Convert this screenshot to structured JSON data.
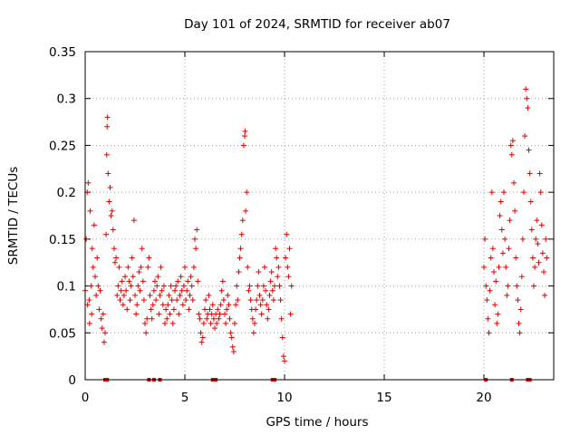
{
  "chart_data": {
    "type": "scatter",
    "title": "Day 101 of 2024, SRMTID for receiver ab07",
    "xlabel": "GPS time / hours",
    "ylabel": "SRMTID / TECUs",
    "xlim": [
      0,
      23.5
    ],
    "ylim": [
      0,
      0.35
    ],
    "xticks": [
      0,
      5,
      10,
      15,
      20
    ],
    "xtick_labels": [
      "0",
      "5",
      "10",
      "15",
      "20"
    ],
    "yticks": [
      0,
      0.05,
      0.1,
      0.15,
      0.2,
      0.25,
      0.3,
      0.35
    ],
    "ytick_labels": [
      "0",
      "0.05",
      "0.1",
      "0.15",
      "0.2",
      "0.25",
      "0.3",
      "0.35"
    ],
    "grid": true,
    "marker": "plus",
    "marker_color": "#e00000",
    "series": [
      {
        "name": "SRMTID",
        "points": [
          [
            0.0,
            0.095
          ],
          [
            0.05,
            0.15
          ],
          [
            0.1,
            0.2
          ],
          [
            0.12,
            0.08
          ],
          [
            0.15,
            0.21
          ],
          [
            0.2,
            0.085
          ],
          [
            0.22,
            0.06
          ],
          [
            0.25,
            0.18
          ],
          [
            0.3,
            0.1
          ],
          [
            0.33,
            0.07
          ],
          [
            0.35,
            0.14
          ],
          [
            0.4,
            0.12
          ],
          [
            0.45,
            0.165
          ],
          [
            0.5,
            0.11
          ],
          [
            0.55,
            0.09
          ],
          [
            0.6,
            0.13
          ],
          [
            0.65,
            0.1
          ],
          [
            0.7,
            0.075
          ],
          [
            0.75,
            0.095
          ],
          [
            0.8,
            0.065
          ],
          [
            0.85,
            0.055
          ],
          [
            0.9,
            0.07
          ],
          [
            0.95,
            0.04
          ],
          [
            1.0,
            0.05
          ],
          [
            1.05,
            0.155
          ],
          [
            1.08,
            0.24
          ],
          [
            1.1,
            0.27
          ],
          [
            1.12,
            0.28
          ],
          [
            1.15,
            0.22
          ],
          [
            1.2,
            0.19
          ],
          [
            1.25,
            0.205
          ],
          [
            1.3,
            0.175
          ],
          [
            1.35,
            0.18
          ],
          [
            1.4,
            0.16
          ],
          [
            1.45,
            0.14
          ],
          [
            1.5,
            0.125
          ],
          [
            1.55,
            0.13
          ],
          [
            1.6,
            0.09
          ],
          [
            1.65,
            0.1
          ],
          [
            1.7,
            0.12
          ],
          [
            1.75,
            0.085
          ],
          [
            1.8,
            0.095
          ],
          [
            1.85,
            0.105
          ],
          [
            1.9,
            0.08
          ],
          [
            1.95,
            0.09
          ],
          [
            2.0,
            0.11
          ],
          [
            2.05,
            0.095
          ],
          [
            2.1,
            0.075
          ],
          [
            2.15,
            0.12
          ],
          [
            2.2,
            0.105
          ],
          [
            2.25,
            0.085
          ],
          [
            2.3,
            0.1
          ],
          [
            2.35,
            0.13
          ],
          [
            2.4,
            0.11
          ],
          [
            2.45,
            0.17
          ],
          [
            2.5,
            0.09
          ],
          [
            2.55,
            0.07
          ],
          [
            2.6,
            0.08
          ],
          [
            2.65,
            0.1
          ],
          [
            2.7,
            0.115
          ],
          [
            2.75,
            0.095
          ],
          [
            2.8,
            0.12
          ],
          [
            2.85,
            0.14
          ],
          [
            2.9,
            0.105
          ],
          [
            2.95,
            0.085
          ],
          [
            3.0,
            0.06
          ],
          [
            3.05,
            0.05
          ],
          [
            3.1,
            0.065
          ],
          [
            3.15,
            0.12
          ],
          [
            3.2,
            0.13
          ],
          [
            3.25,
            0.09
          ],
          [
            3.3,
            0.075
          ],
          [
            3.35,
            0.065
          ],
          [
            3.4,
            0.08
          ],
          [
            3.45,
            0.095
          ],
          [
            3.5,
            0.105
          ],
          [
            3.55,
            0.085
          ],
          [
            3.6,
            0.1
          ],
          [
            3.65,
            0.11
          ],
          [
            3.7,
            0.07
          ],
          [
            3.75,
            0.09
          ],
          [
            3.8,
            0.12
          ],
          [
            3.85,
            0.095
          ],
          [
            3.9,
            0.08
          ],
          [
            3.95,
            0.1
          ],
          [
            4.0,
            0.06
          ],
          [
            4.05,
            0.075
          ],
          [
            4.1,
            0.065
          ],
          [
            4.15,
            0.08
          ],
          [
            4.2,
            0.09
          ],
          [
            4.25,
            0.07
          ],
          [
            4.3,
            0.1
          ],
          [
            4.35,
            0.085
          ],
          [
            4.4,
            0.06
          ],
          [
            4.45,
            0.075
          ],
          [
            4.5,
            0.095
          ],
          [
            4.55,
            0.1
          ],
          [
            4.6,
            0.085
          ],
          [
            4.65,
            0.105
          ],
          [
            4.7,
            0.07
          ],
          [
            4.75,
            0.09
          ],
          [
            4.8,
            0.11
          ],
          [
            4.85,
            0.095
          ],
          [
            4.9,
            0.08
          ],
          [
            4.95,
            0.1
          ],
          [
            5.0,
            0.12
          ],
          [
            5.05,
            0.085
          ],
          [
            5.1,
            0.095
          ],
          [
            5.15,
            0.105
          ],
          [
            5.2,
            0.075
          ],
          [
            5.25,
            0.09
          ],
          [
            5.3,
            0.11
          ],
          [
            5.35,
            0.1
          ],
          [
            5.4,
            0.085
          ],
          [
            5.45,
            0.12
          ],
          [
            5.5,
            0.15
          ],
          [
            5.55,
            0.14
          ],
          [
            5.6,
            0.16
          ],
          [
            5.65,
            0.105
          ],
          [
            5.7,
            0.07
          ],
          [
            5.75,
            0.065
          ],
          [
            5.8,
            0.05
          ],
          [
            5.85,
            0.04
          ],
          [
            5.9,
            0.045
          ],
          [
            5.95,
            0.06
          ],
          [
            6.0,
            0.075
          ],
          [
            6.05,
            0.085
          ],
          [
            6.1,
            0.065
          ],
          [
            6.15,
            0.07
          ],
          [
            6.2,
            0.09
          ],
          [
            6.25,
            0.075
          ],
          [
            6.3,
            0.06
          ],
          [
            6.35,
            0.07
          ],
          [
            6.4,
            0.08
          ],
          [
            6.45,
            0.065
          ],
          [
            6.5,
            0.055
          ],
          [
            6.55,
            0.07
          ],
          [
            6.6,
            0.06
          ],
          [
            6.65,
            0.075
          ],
          [
            6.7,
            0.065
          ],
          [
            6.75,
            0.07
          ],
          [
            6.8,
            0.08
          ],
          [
            6.85,
            0.095
          ],
          [
            6.9,
            0.105
          ],
          [
            6.95,
            0.085
          ],
          [
            7.0,
            0.07
          ],
          [
            7.05,
            0.06
          ],
          [
            7.1,
            0.075
          ],
          [
            7.15,
            0.09
          ],
          [
            7.2,
            0.08
          ],
          [
            7.25,
            0.065
          ],
          [
            7.3,
            0.05
          ],
          [
            7.35,
            0.045
          ],
          [
            7.4,
            0.035
          ],
          [
            7.45,
            0.03
          ],
          [
            7.5,
            0.06
          ],
          [
            7.55,
            0.08
          ],
          [
            7.6,
            0.1
          ],
          [
            7.65,
            0.085
          ],
          [
            7.7,
            0.115
          ],
          [
            7.75,
            0.13
          ],
          [
            7.8,
            0.14
          ],
          [
            7.85,
            0.155
          ],
          [
            7.9,
            0.17
          ],
          [
            7.95,
            0.25
          ],
          [
            8.0,
            0.26
          ],
          [
            8.02,
            0.265
          ],
          [
            8.05,
            0.18
          ],
          [
            8.1,
            0.2
          ],
          [
            8.15,
            0.12
          ],
          [
            8.2,
            0.095
          ],
          [
            8.25,
            0.1
          ],
          [
            8.3,
            0.085
          ],
          [
            8.35,
            0.075
          ],
          [
            8.4,
            0.065
          ],
          [
            8.45,
            0.05
          ],
          [
            8.5,
            0.06
          ],
          [
            8.55,
            0.075
          ],
          [
            8.6,
            0.085
          ],
          [
            8.65,
            0.1
          ],
          [
            8.7,
            0.115
          ],
          [
            8.75,
            0.09
          ],
          [
            8.8,
            0.08
          ],
          [
            8.85,
            0.07
          ],
          [
            8.9,
            0.085
          ],
          [
            8.95,
            0.1
          ],
          [
            9.0,
            0.12
          ],
          [
            9.05,
            0.095
          ],
          [
            9.1,
            0.08
          ],
          [
            9.15,
            0.065
          ],
          [
            9.2,
            0.075
          ],
          [
            9.25,
            0.09
          ],
          [
            9.3,
            0.105
          ],
          [
            9.35,
            0.115
          ],
          [
            9.4,
            0.095
          ],
          [
            9.45,
            0.085
          ],
          [
            9.5,
            0.1
          ],
          [
            9.55,
            0.14
          ],
          [
            9.6,
            0.13
          ],
          [
            9.65,
            0.11
          ],
          [
            9.7,
            0.12
          ],
          [
            9.75,
            0.1
          ],
          [
            9.8,
            0.085
          ],
          [
            9.85,
            0.065
          ],
          [
            9.9,
            0.045
          ],
          [
            9.95,
            0.025
          ],
          [
            10.0,
            0.02
          ],
          [
            10.05,
            0.13
          ],
          [
            10.1,
            0.155
          ],
          [
            10.15,
            0.12
          ],
          [
            10.2,
            0.11
          ],
          [
            10.25,
            0.14
          ],
          [
            10.3,
            0.07
          ],
          [
            10.35,
            0.1
          ],
          [
            20.0,
            0.12
          ],
          [
            20.05,
            0.15
          ],
          [
            20.1,
            0.1
          ],
          [
            20.15,
            0.085
          ],
          [
            20.2,
            0.065
          ],
          [
            20.25,
            0.05
          ],
          [
            20.3,
            0.095
          ],
          [
            20.35,
            0.13
          ],
          [
            20.4,
            0.2
          ],
          [
            20.45,
            0.14
          ],
          [
            20.5,
            0.115
          ],
          [
            20.55,
            0.08
          ],
          [
            20.6,
            0.105
          ],
          [
            20.65,
            0.06
          ],
          [
            20.7,
            0.07
          ],
          [
            20.75,
            0.12
          ],
          [
            20.8,
            0.175
          ],
          [
            20.85,
            0.19
          ],
          [
            20.9,
            0.16
          ],
          [
            20.95,
            0.135
          ],
          [
            21.0,
            0.2
          ],
          [
            21.05,
            0.15
          ],
          [
            21.1,
            0.12
          ],
          [
            21.15,
            0.09
          ],
          [
            21.2,
            0.1
          ],
          [
            21.25,
            0.14
          ],
          [
            21.3,
            0.17
          ],
          [
            21.35,
            0.25
          ],
          [
            21.4,
            0.24
          ],
          [
            21.45,
            0.255
          ],
          [
            21.5,
            0.21
          ],
          [
            21.55,
            0.18
          ],
          [
            21.6,
            0.13
          ],
          [
            21.65,
            0.1
          ],
          [
            21.7,
            0.085
          ],
          [
            21.75,
            0.06
          ],
          [
            21.8,
            0.05
          ],
          [
            21.85,
            0.075
          ],
          [
            21.9,
            0.11
          ],
          [
            21.95,
            0.15
          ],
          [
            22.0,
            0.2
          ],
          [
            22.05,
            0.26
          ],
          [
            22.1,
            0.31
          ],
          [
            22.15,
            0.3
          ],
          [
            22.2,
            0.29
          ],
          [
            22.25,
            0.245
          ],
          [
            22.3,
            0.22
          ],
          [
            22.35,
            0.19
          ],
          [
            22.4,
            0.16
          ],
          [
            22.45,
            0.13
          ],
          [
            22.5,
            0.1
          ],
          [
            22.55,
            0.12
          ],
          [
            22.6,
            0.15
          ],
          [
            22.65,
            0.17
          ],
          [
            22.7,
            0.145
          ],
          [
            22.75,
            0.125
          ],
          [
            22.8,
            0.22
          ],
          [
            22.85,
            0.2
          ],
          [
            22.9,
            0.165
          ],
          [
            22.95,
            0.135
          ],
          [
            23.0,
            0.115
          ],
          [
            23.05,
            0.09
          ],
          [
            23.1,
            0.15
          ],
          [
            23.15,
            0.13
          ]
        ]
      }
    ],
    "data_gaps_hours": [
      1.0,
      1.1,
      3.2,
      3.45,
      3.75,
      6.4,
      6.55,
      9.4,
      9.5,
      20.1,
      21.4,
      22.2,
      22.3
    ]
  }
}
